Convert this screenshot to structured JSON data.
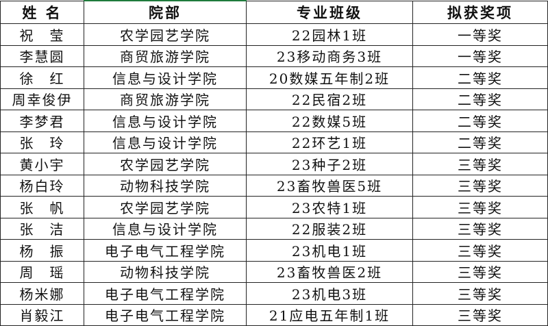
{
  "headers": [
    "姓 名",
    "院部",
    "专业班级",
    "拟获奖项"
  ],
  "rows": [
    [
      "祝　莹",
      "农学园艺学院",
      "22园林1班",
      "一等奖"
    ],
    [
      "李慧圆",
      "商贸旅游学院",
      "23移动商务3班",
      "一等奖"
    ],
    [
      "徐　红",
      "信息与设计学院",
      "20数媒五年制2班",
      "二等奖"
    ],
    [
      "周幸俊伊",
      "商贸旅游学院",
      "22民宿2班",
      "二等奖"
    ],
    [
      "李梦君",
      "信息与设计学院",
      "22数媒5班",
      "二等奖"
    ],
    [
      "张　玲",
      "信息与设计学院",
      "22环艺1班",
      "二等奖"
    ],
    [
      "黄小宇",
      "农学园艺学院",
      "23种子2班",
      "三等奖"
    ],
    [
      "杨白玲",
      "动物科技学院",
      "23畜牧兽医5班",
      "三等奖"
    ],
    [
      "张　帆",
      "农学园艺学院",
      "23农特1班",
      "三等奖"
    ],
    [
      "张　洁",
      "信息与设计学院",
      "22服装2班",
      "三等奖"
    ],
    [
      "杨　振",
      "电子电气工程学院",
      "23机电1班",
      "三等奖"
    ],
    [
      "周　瑶",
      "动物科技学院",
      "23畜牧兽医2班",
      "三等奖"
    ],
    [
      "杨米娜",
      "电子电气工程学院",
      "23机电3班",
      "三等奖"
    ],
    [
      "肖毅江",
      "电子电气工程学院",
      "21应电五年制1班",
      "三等奖"
    ]
  ],
  "colors": {
    "selection_border": "#1e7b3c"
  }
}
